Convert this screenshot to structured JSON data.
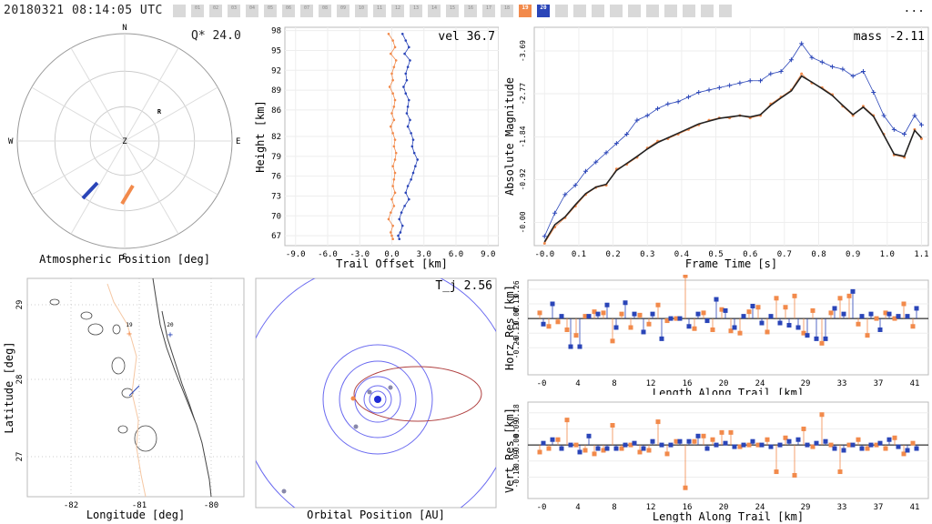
{
  "header": {
    "timestamp": "20180321 08:14:05 UTC",
    "more": "...",
    "stations": [
      {
        "label": "",
        "state": "off"
      },
      {
        "label": "01",
        "state": "off"
      },
      {
        "label": "02",
        "state": "off"
      },
      {
        "label": "03",
        "state": "off"
      },
      {
        "label": "04",
        "state": "off"
      },
      {
        "label": "05",
        "state": "off"
      },
      {
        "label": "06",
        "state": "off"
      },
      {
        "label": "07",
        "state": "off"
      },
      {
        "label": "08",
        "state": "off"
      },
      {
        "label": "09",
        "state": "off"
      },
      {
        "label": "10",
        "state": "off"
      },
      {
        "label": "11",
        "state": "off"
      },
      {
        "label": "12",
        "state": "off"
      },
      {
        "label": "13",
        "state": "off"
      },
      {
        "label": "14",
        "state": "off"
      },
      {
        "label": "15",
        "state": "off"
      },
      {
        "label": "16",
        "state": "off"
      },
      {
        "label": "17",
        "state": "off"
      },
      {
        "label": "18",
        "state": "off"
      },
      {
        "label": "19",
        "state": "orange"
      },
      {
        "label": "20",
        "state": "blue"
      },
      {
        "label": "",
        "state": "off"
      },
      {
        "label": "",
        "state": "off"
      },
      {
        "label": "",
        "state": "off"
      },
      {
        "label": "",
        "state": "off"
      },
      {
        "label": "",
        "state": "off"
      },
      {
        "label": "",
        "state": "off"
      },
      {
        "label": "",
        "state": "off"
      },
      {
        "label": "",
        "state": "off"
      },
      {
        "label": "",
        "state": "off"
      },
      {
        "label": "",
        "state": "off"
      }
    ]
  },
  "colors": {
    "orange": "#f28a4b",
    "blue": "#2a45b8",
    "grid": "#dddddd",
    "dark": "#222222"
  },
  "polar": {
    "title": "Atmospheric Position [deg]",
    "overlay": "Q* 24.0",
    "labels": {
      "n": "N",
      "s": "S",
      "e": "E",
      "w": "W",
      "z": "Z",
      "r": "R"
    }
  },
  "map": {
    "xlabel": "Longitude [deg]",
    "ylabel": "Latitude [deg]",
    "xticks": [
      "-82",
      "-81",
      "-80"
    ],
    "yticks": [
      "29",
      "28",
      "27"
    ],
    "station_labels": [
      "19",
      "20"
    ]
  },
  "orbit": {
    "overlay": "T_j 2.56",
    "xlabel": "Orbital Position [AU]"
  },
  "chart_data": [
    {
      "type": "line",
      "name": "trail",
      "ylabel": "Height [km]",
      "xlabel": "Trail Offset [km]",
      "overlay": "vel 36.7",
      "xlim": [
        -10,
        10
      ],
      "ylim": [
        65.5,
        98.5
      ],
      "xticks": [
        "-9.0",
        "-6.0",
        "-3.0",
        "0.0",
        "3.0",
        "6.0",
        "9.0"
      ],
      "yticks": [
        "67",
        "70",
        "73",
        "76",
        "79",
        "82",
        "86",
        "89",
        "92",
        "95",
        "98"
      ],
      "series": [
        {
          "color": "orange",
          "x": [
            -0.3,
            0.1,
            0.3,
            -0.1,
            0.4,
            0.2,
            0.0,
            0.1,
            -0.2,
            0.1,
            0.3,
            0.2,
            0.0,
            0.2,
            -0.1,
            0.1,
            0.3,
            0.2,
            0.4,
            0.3,
            0.1,
            0.3,
            0.2,
            0.1,
            0.3,
            0.0,
            0.2,
            -0.1,
            -0.3,
            0.1,
            -0.1,
            0.0,
            0.1
          ],
          "y": [
            97.5,
            96.5,
            95.5,
            94.5,
            93.5,
            92.5,
            91.5,
            90.5,
            89.5,
            88.5,
            87.5,
            86.5,
            85.5,
            84.5,
            83.5,
            82.5,
            81.5,
            80.5,
            79.5,
            78.5,
            77.5,
            76.5,
            75.5,
            74.5,
            73.5,
            72.5,
            71.5,
            70.5,
            69.5,
            68.5,
            67.5,
            67.0,
            66.5
          ]
        },
        {
          "color": "blue",
          "x": [
            1.0,
            1.3,
            1.6,
            1.2,
            1.7,
            1.5,
            1.3,
            1.4,
            1.1,
            1.3,
            1.6,
            1.5,
            1.4,
            1.7,
            1.5,
            1.8,
            2.0,
            1.9,
            2.1,
            2.4,
            2.2,
            2.0,
            1.8,
            1.5,
            1.3,
            1.6,
            1.2,
            0.9,
            0.7,
            1.0,
            0.8,
            0.6,
            0.7
          ],
          "y": [
            97.5,
            96.5,
            95.5,
            94.5,
            93.5,
            92.5,
            91.5,
            90.5,
            89.5,
            88.5,
            87.5,
            86.5,
            85.5,
            84.5,
            83.5,
            82.5,
            81.5,
            80.5,
            79.5,
            78.5,
            77.5,
            76.5,
            75.5,
            74.5,
            73.5,
            72.5,
            71.5,
            70.5,
            69.5,
            68.5,
            67.5,
            67.0,
            66.5
          ]
        }
      ]
    },
    {
      "type": "line",
      "name": "lightcurve",
      "ylabel": "Absolute Magnitude",
      "xlabel": "Frame Time [s]",
      "overlay": "mass -2.11",
      "xlim": [
        -0.03,
        1.12
      ],
      "ylim": [
        0.5,
        -4.2
      ],
      "xticks": [
        "-0.0",
        "0.1",
        "0.2",
        "0.3",
        "0.4",
        "0.5",
        "0.6",
        "0.7",
        "0.8",
        "0.9",
        "1.0",
        "1.1"
      ],
      "yticks": [
        "-0.00",
        "-0.92",
        "-1.84",
        "-2.77",
        "-3.69"
      ],
      "series": [
        {
          "color": "blue",
          "x": [
            0.0,
            0.03,
            0.06,
            0.09,
            0.12,
            0.15,
            0.18,
            0.21,
            0.24,
            0.27,
            0.3,
            0.33,
            0.36,
            0.39,
            0.42,
            0.45,
            0.48,
            0.51,
            0.54,
            0.57,
            0.6,
            0.63,
            0.66,
            0.69,
            0.72,
            0.75,
            0.78,
            0.81,
            0.84,
            0.87,
            0.9,
            0.93,
            0.96,
            0.99,
            1.02,
            1.05,
            1.08,
            1.1
          ],
          "y": [
            0.3,
            -0.2,
            -0.6,
            -0.8,
            -1.1,
            -1.3,
            -1.5,
            -1.7,
            -1.9,
            -2.2,
            -2.3,
            -2.45,
            -2.55,
            -2.6,
            -2.7,
            -2.8,
            -2.85,
            -2.9,
            -2.95,
            -3.0,
            -3.05,
            -3.05,
            -3.2,
            -3.25,
            -3.5,
            -3.85,
            -3.55,
            -3.45,
            -3.35,
            -3.3,
            -3.15,
            -3.25,
            -2.8,
            -2.3,
            -2.0,
            -1.9,
            -2.3,
            -2.1
          ]
        },
        {
          "color": "orange",
          "x": [
            0.0,
            0.03,
            0.06,
            0.09,
            0.12,
            0.15,
            0.18,
            0.21,
            0.24,
            0.27,
            0.3,
            0.33,
            0.36,
            0.39,
            0.42,
            0.45,
            0.48,
            0.51,
            0.54,
            0.57,
            0.6,
            0.63,
            0.66,
            0.69,
            0.72,
            0.75,
            0.78,
            0.81,
            0.84,
            0.87,
            0.9,
            0.93,
            0.96,
            0.99,
            1.02,
            1.05,
            1.08,
            1.1
          ],
          "y": [
            0.45,
            0.1,
            -0.1,
            -0.35,
            -0.6,
            -0.75,
            -0.8,
            -1.15,
            -1.25,
            -1.4,
            -1.6,
            -1.75,
            -1.8,
            -1.9,
            -2.0,
            -2.1,
            -2.2,
            -2.25,
            -2.25,
            -2.3,
            -2.25,
            -2.3,
            -2.55,
            -2.7,
            -2.85,
            -3.2,
            -3.0,
            -2.9,
            -2.75,
            -2.5,
            -2.3,
            -2.5,
            -2.3,
            -1.9,
            -1.45,
            -1.4,
            -2.0,
            -1.8
          ]
        },
        {
          "color": "dark",
          "x": [
            0.0,
            0.03,
            0.06,
            0.09,
            0.12,
            0.15,
            0.18,
            0.21,
            0.24,
            0.27,
            0.3,
            0.33,
            0.36,
            0.39,
            0.42,
            0.45,
            0.48,
            0.51,
            0.54,
            0.57,
            0.6,
            0.63,
            0.66,
            0.69,
            0.72,
            0.75,
            0.78,
            0.81,
            0.84,
            0.87,
            0.9,
            0.93,
            0.96,
            0.99,
            1.02,
            1.05,
            1.08,
            1.1
          ],
          "y": [
            0.42,
            0.05,
            -0.12,
            -0.38,
            -0.62,
            -0.76,
            -0.82,
            -1.12,
            -1.27,
            -1.42,
            -1.58,
            -1.72,
            -1.82,
            -1.92,
            -2.02,
            -2.12,
            -2.18,
            -2.24,
            -2.27,
            -2.3,
            -2.27,
            -2.32,
            -2.52,
            -2.68,
            -2.83,
            -3.15,
            -3.02,
            -2.88,
            -2.73,
            -2.52,
            -2.32,
            -2.48,
            -2.28,
            -1.88,
            -1.47,
            -1.42,
            -1.98,
            -1.82
          ]
        }
      ]
    },
    {
      "type": "scatter",
      "name": "horz",
      "ylabel": "Horz Res [km]",
      "xlabel": "Length Along Trail [km]",
      "xlim": [
        -1.5,
        42.5
      ],
      "ylim": [
        -0.5,
        0.34
      ],
      "xticks": [
        "-0",
        "4",
        "8",
        "12",
        "16",
        "20",
        "24",
        "29",
        "33",
        "37",
        "41"
      ],
      "xtick_vals": [
        0,
        4,
        8,
        12,
        16,
        20,
        24,
        29,
        33,
        37,
        41
      ],
      "yticks": [
        "0.26",
        "0.13",
        "-0.00",
        "-0.13",
        "-0.26"
      ],
      "ytick_vals": [
        0.26,
        0.13,
        0,
        -0.13,
        -0.26
      ],
      "series": [
        {
          "color": "orange",
          "x": [
            0,
            1,
            2,
            3,
            4,
            5,
            6,
            7,
            8,
            9,
            10,
            11,
            12,
            13,
            14,
            15,
            16,
            17,
            18,
            19,
            20,
            21,
            22,
            23,
            24,
            25,
            26,
            27,
            28,
            29,
            30,
            31,
            32,
            33,
            34,
            35,
            36,
            37,
            38,
            39,
            40,
            41
          ],
          "y": [
            0.05,
            -0.07,
            -0.03,
            -0.1,
            -0.15,
            0.02,
            0.06,
            0.05,
            -0.2,
            0.04,
            -0.08,
            0.03,
            -0.05,
            0.12,
            -0.02,
            0.0,
            0.38,
            -0.09,
            0.05,
            -0.1,
            0.08,
            -0.11,
            -0.13,
            0.06,
            0.1,
            -0.12,
            0.18,
            0.1,
            0.2,
            -0.13,
            0.07,
            -0.22,
            0.05,
            0.18,
            0.2,
            -0.05,
            -0.15,
            0.0,
            0.05,
            0.0,
            0.13,
            -0.07
          ]
        },
        {
          "color": "blue",
          "x": [
            0,
            1,
            2,
            3,
            4,
            5,
            6,
            7,
            8,
            9,
            10,
            11,
            12,
            13,
            14,
            15,
            16,
            17,
            18,
            19,
            20,
            21,
            22,
            23,
            24,
            25,
            26,
            27,
            28,
            29,
            30,
            31,
            32,
            33,
            34,
            35,
            36,
            37,
            38,
            39,
            40,
            41
          ],
          "y": [
            -0.05,
            0.13,
            0.02,
            -0.25,
            -0.25,
            0.02,
            0.04,
            0.12,
            -0.08,
            0.14,
            0.04,
            -0.12,
            0.04,
            -0.18,
            0.0,
            0.0,
            -0.07,
            0.04,
            -0.02,
            0.17,
            0.07,
            -0.08,
            0.02,
            0.11,
            -0.04,
            0.02,
            -0.04,
            -0.06,
            -0.08,
            -0.15,
            -0.18,
            -0.18,
            0.09,
            0.04,
            0.24,
            0.02,
            0.04,
            -0.1,
            0.04,
            0.02,
            0.02,
            0.09
          ]
        }
      ]
    },
    {
      "type": "scatter",
      "name": "vert",
      "ylabel": "Vert Res [km]",
      "xlabel": "Length Along Trail [km]",
      "xlim": [
        -1.5,
        42.5
      ],
      "ylim": [
        -0.3,
        0.24
      ],
      "xticks": [
        "-0",
        "4",
        "8",
        "12",
        "16",
        "20",
        "24",
        "29",
        "33",
        "37",
        "41"
      ],
      "xtick_vals": [
        0,
        4,
        8,
        12,
        16,
        20,
        24,
        29,
        33,
        37,
        41
      ],
      "yticks": [
        "0.18",
        "0.09",
        "-0.00",
        "-0.09",
        "-0.18"
      ],
      "ytick_vals": [
        0.18,
        0.09,
        0,
        -0.09,
        -0.18
      ],
      "series": [
        {
          "color": "orange",
          "x": [
            0,
            1,
            2,
            3,
            4,
            5,
            6,
            7,
            8,
            9,
            10,
            11,
            12,
            13,
            14,
            15,
            16,
            17,
            18,
            19,
            20,
            21,
            22,
            23,
            24,
            25,
            26,
            27,
            28,
            29,
            30,
            31,
            32,
            33,
            34,
            35,
            36,
            37,
            38,
            39,
            40,
            41
          ],
          "y": [
            -0.04,
            -0.02,
            0.03,
            0.14,
            0.0,
            -0.03,
            -0.05,
            -0.03,
            0.11,
            -0.02,
            0.0,
            -0.04,
            -0.03,
            0.13,
            -0.05,
            0.02,
            -0.24,
            0.02,
            0.05,
            0.03,
            0.07,
            0.07,
            -0.01,
            0.0,
            0.0,
            0.03,
            -0.15,
            0.04,
            -0.17,
            0.09,
            -0.01,
            0.17,
            0.0,
            -0.15,
            0.0,
            0.03,
            -0.02,
            0.0,
            -0.02,
            0.04,
            -0.05,
            0.01
          ]
        },
        {
          "color": "blue",
          "x": [
            0,
            1,
            2,
            3,
            4,
            5,
            6,
            7,
            8,
            9,
            10,
            11,
            12,
            13,
            14,
            15,
            16,
            17,
            18,
            19,
            20,
            21,
            22,
            23,
            24,
            25,
            26,
            27,
            28,
            29,
            30,
            31,
            32,
            33,
            34,
            35,
            36,
            37,
            38,
            39,
            40,
            41
          ],
          "y": [
            0.01,
            0.03,
            -0.02,
            0.0,
            -0.04,
            0.05,
            -0.02,
            -0.02,
            -0.02,
            0.0,
            0.01,
            -0.02,
            0.02,
            0.0,
            0.0,
            0.02,
            0.02,
            0.05,
            -0.02,
            0.0,
            0.01,
            -0.01,
            0.0,
            0.02,
            0.0,
            -0.01,
            0.0,
            0.02,
            0.03,
            0.0,
            0.01,
            0.02,
            -0.02,
            -0.03,
            0.0,
            -0.02,
            0.0,
            0.01,
            0.03,
            -0.01,
            -0.03,
            -0.02
          ]
        }
      ]
    }
  ]
}
